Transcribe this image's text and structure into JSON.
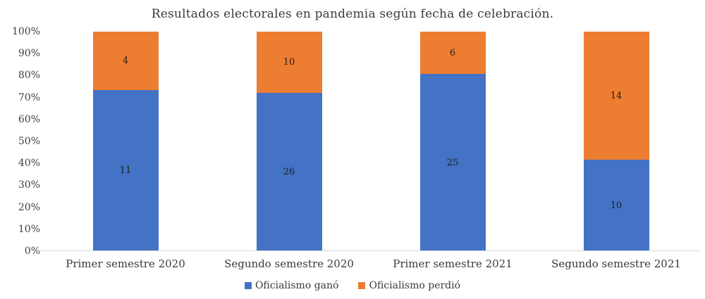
{
  "chart_data": {
    "type": "bar",
    "stacked": true,
    "percent_stacked": true,
    "title": "Resultados electorales en pandemia según fecha de celebración.",
    "categories": [
      "Primer semestre 2020",
      "Segundo semestre 2020",
      "Primer semestre 2021",
      "Segundo semestre 2021"
    ],
    "series": [
      {
        "name": "Oficialismo ganó",
        "color": "#4472C4",
        "values": [
          11,
          26,
          25,
          10
        ]
      },
      {
        "name": "Oficialismo perdió",
        "color": "#ED7D31",
        "values": [
          4,
          10,
          6,
          14
        ]
      }
    ],
    "y_ticks": [
      "0%",
      "10%",
      "20%",
      "30%",
      "40%",
      "50%",
      "60%",
      "70%",
      "80%",
      "90%",
      "100%"
    ],
    "ylim": [
      0,
      100
    ],
    "gridlines": false,
    "legend_position": "bottom",
    "colors": {
      "axis_text": "#404040",
      "category_text": "#3a3a3a",
      "data_label": "#1f1f1f",
      "axis_line": "#d9d9d9",
      "background": "#ffffff"
    }
  }
}
